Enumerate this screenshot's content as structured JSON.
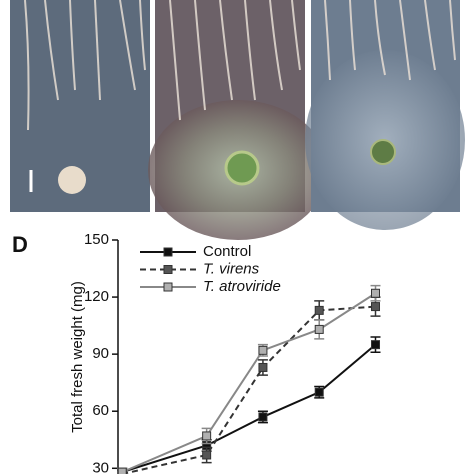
{
  "chart_data": {
    "type": "line",
    "panel_label": "D",
    "ylabel": "Total fresh weight (mg)",
    "x": [
      0,
      3,
      5,
      7,
      9
    ],
    "xlim": [
      -0.15,
      12.5
    ],
    "ylim": [
      27,
      150
    ],
    "yticks": [
      30,
      60,
      90,
      120,
      150
    ],
    "series": [
      {
        "name": "Control",
        "color": "#111111",
        "marker_color": "#111111",
        "linestyle": "solid",
        "values": [
          28,
          42,
          57,
          70,
          95
        ],
        "errors": [
          2,
          3,
          3,
          3,
          4
        ]
      },
      {
        "name": "T. virens",
        "color": "#333333",
        "marker_color": "#555555",
        "linestyle": "dashed",
        "values": [
          27,
          37,
          83,
          113,
          115
        ],
        "errors": [
          2,
          4,
          4,
          5,
          5
        ]
      },
      {
        "name": "T. atroviride",
        "color": "#888888",
        "marker_color": "#b0b0b0",
        "linestyle": "solid",
        "values": [
          28,
          47,
          92,
          103,
          122
        ],
        "errors": [
          2,
          4,
          3,
          5,
          4
        ]
      }
    ]
  }
}
